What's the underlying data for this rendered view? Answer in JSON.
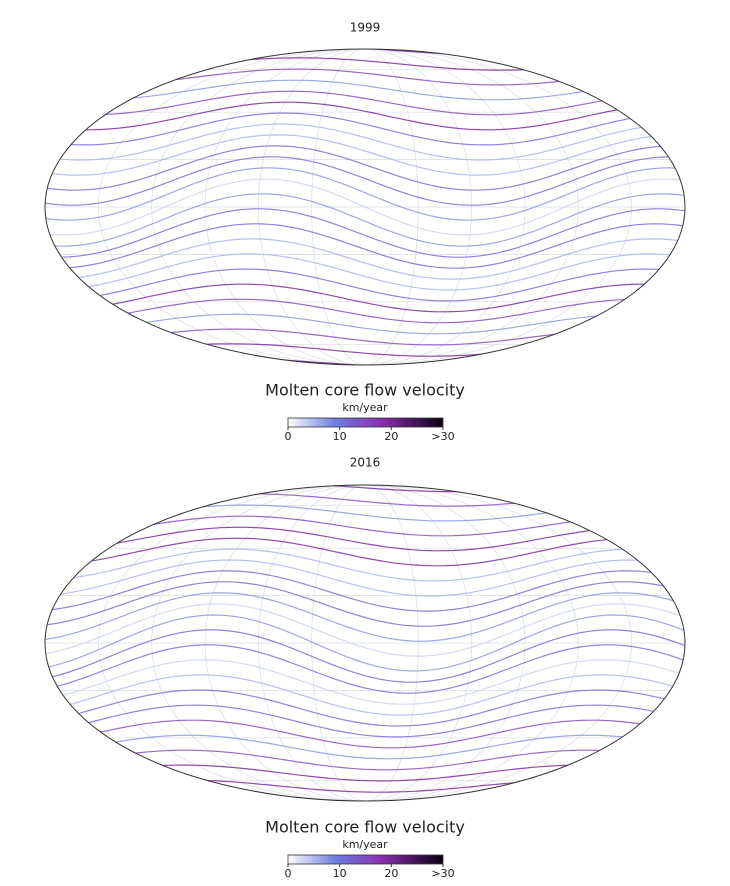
{
  "maps": [
    {
      "title": "1999",
      "colorbar": {
        "title": "Molten core flow velocity",
        "unit": "km/year",
        "ticks": [
          0,
          10,
          20,
          {
            "value": 30,
            "label": ">30"
          }
        ]
      }
    },
    {
      "title": "2016",
      "colorbar": {
        "title": "Molten core flow velocity",
        "unit": "km/year",
        "ticks": [
          0,
          10,
          20,
          {
            "value": 30,
            "label": ">30"
          }
        ]
      }
    }
  ]
}
